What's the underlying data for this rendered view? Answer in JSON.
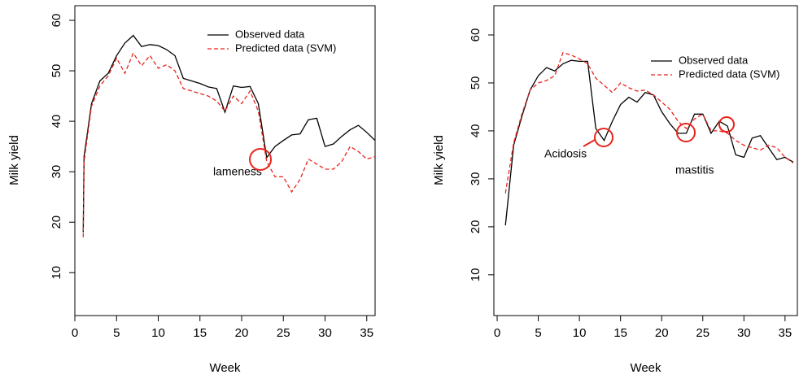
{
  "chart_data": [
    {
      "type": "line",
      "xlabel": "Week",
      "ylabel": "Milk yield",
      "x": [
        1,
        1.1,
        2,
        3,
        4,
        5,
        6,
        7,
        8,
        9,
        10,
        11,
        12,
        13,
        14,
        15,
        16,
        17,
        18,
        19,
        20,
        21,
        22,
        23,
        24,
        25,
        26,
        27,
        28,
        29,
        30,
        31,
        32,
        33,
        34,
        35,
        36
      ],
      "series": [
        {
          "name": "Observed data",
          "color": "#000000",
          "linestyle": "solid",
          "values": [
            18,
            33,
            43.5,
            48,
            49.5,
            53,
            55.5,
            57,
            54.8,
            55.2,
            55,
            54.2,
            53,
            48.5,
            48,
            47.5,
            46.8,
            46.5,
            41.8,
            47,
            46.7,
            46.9,
            43.5,
            32.8,
            35,
            36.2,
            37.3,
            37.5,
            40.3,
            40.6,
            35,
            35.5,
            37,
            38.3,
            39.2,
            37.8,
            36.2
          ]
        },
        {
          "name": "Predicted data (SVM)",
          "color": "#e8241c",
          "linestyle": "dashed",
          "values": [
            17,
            32,
            43,
            47,
            49,
            52.5,
            49.5,
            53.5,
            51,
            53,
            50.5,
            51.2,
            50,
            46.5,
            46,
            45.5,
            45,
            44,
            42,
            45,
            43.5,
            46,
            42,
            32,
            29,
            29,
            26,
            28.5,
            32.5,
            31.5,
            30.5,
            30.5,
            32,
            35,
            34,
            32.5,
            33
          ]
        }
      ],
      "xlim": [
        0,
        36
      ],
      "ylim": [
        1.5,
        62.9
      ],
      "xticks": [
        0,
        5,
        10,
        15,
        20,
        25,
        30,
        35
      ],
      "yticks": [
        10,
        20,
        30,
        40,
        50,
        60
      ],
      "annotations": [
        "lameness"
      ]
    },
    {
      "type": "line",
      "xlabel": "Week",
      "ylabel": "Milk yield",
      "x": [
        1,
        2,
        3,
        4,
        5,
        6,
        7,
        8,
        9,
        10,
        11,
        12,
        13,
        14,
        15,
        16,
        17,
        18,
        19,
        20,
        21,
        22,
        23,
        24,
        25,
        26,
        27,
        28,
        29,
        30,
        31,
        32,
        33,
        34,
        35,
        36
      ],
      "series": [
        {
          "name": "Observed data",
          "color": "#000000",
          "linestyle": "solid",
          "values": [
            20.3,
            37,
            43,
            48.5,
            51.5,
            53.2,
            52.5,
            54,
            54.7,
            54.5,
            54.5,
            40.5,
            38,
            42,
            45.5,
            47,
            46,
            48,
            47.5,
            44,
            41.5,
            39.5,
            39.5,
            43.5,
            43.5,
            39.5,
            42,
            41,
            35,
            34.5,
            38.5,
            39,
            36.5,
            34,
            34.5,
            33.5
          ]
        },
        {
          "name": "Predicted data (SVM)",
          "color": "#e8241c",
          "linestyle": "dashed",
          "values": [
            27,
            37.5,
            43.5,
            48.5,
            50,
            50.5,
            51.5,
            56.3,
            55.8,
            55,
            54,
            51,
            49.5,
            48,
            50,
            49,
            48.3,
            48.5,
            47.5,
            46,
            44.5,
            42,
            40.5,
            42.5,
            43.5,
            40,
            40,
            39.5,
            38,
            37,
            36.5,
            36,
            37,
            36.5,
            34.5,
            33.3
          ]
        }
      ],
      "xlim": [
        -0.4,
        36.5
      ],
      "ylim": [
        1.5,
        66.1
      ],
      "xticks": [
        0,
        5,
        10,
        15,
        20,
        25,
        30,
        35
      ],
      "yticks": [
        10,
        20,
        30,
        40,
        50,
        60
      ],
      "annotations": [
        "Acidosis",
        "mastitis"
      ]
    }
  ]
}
